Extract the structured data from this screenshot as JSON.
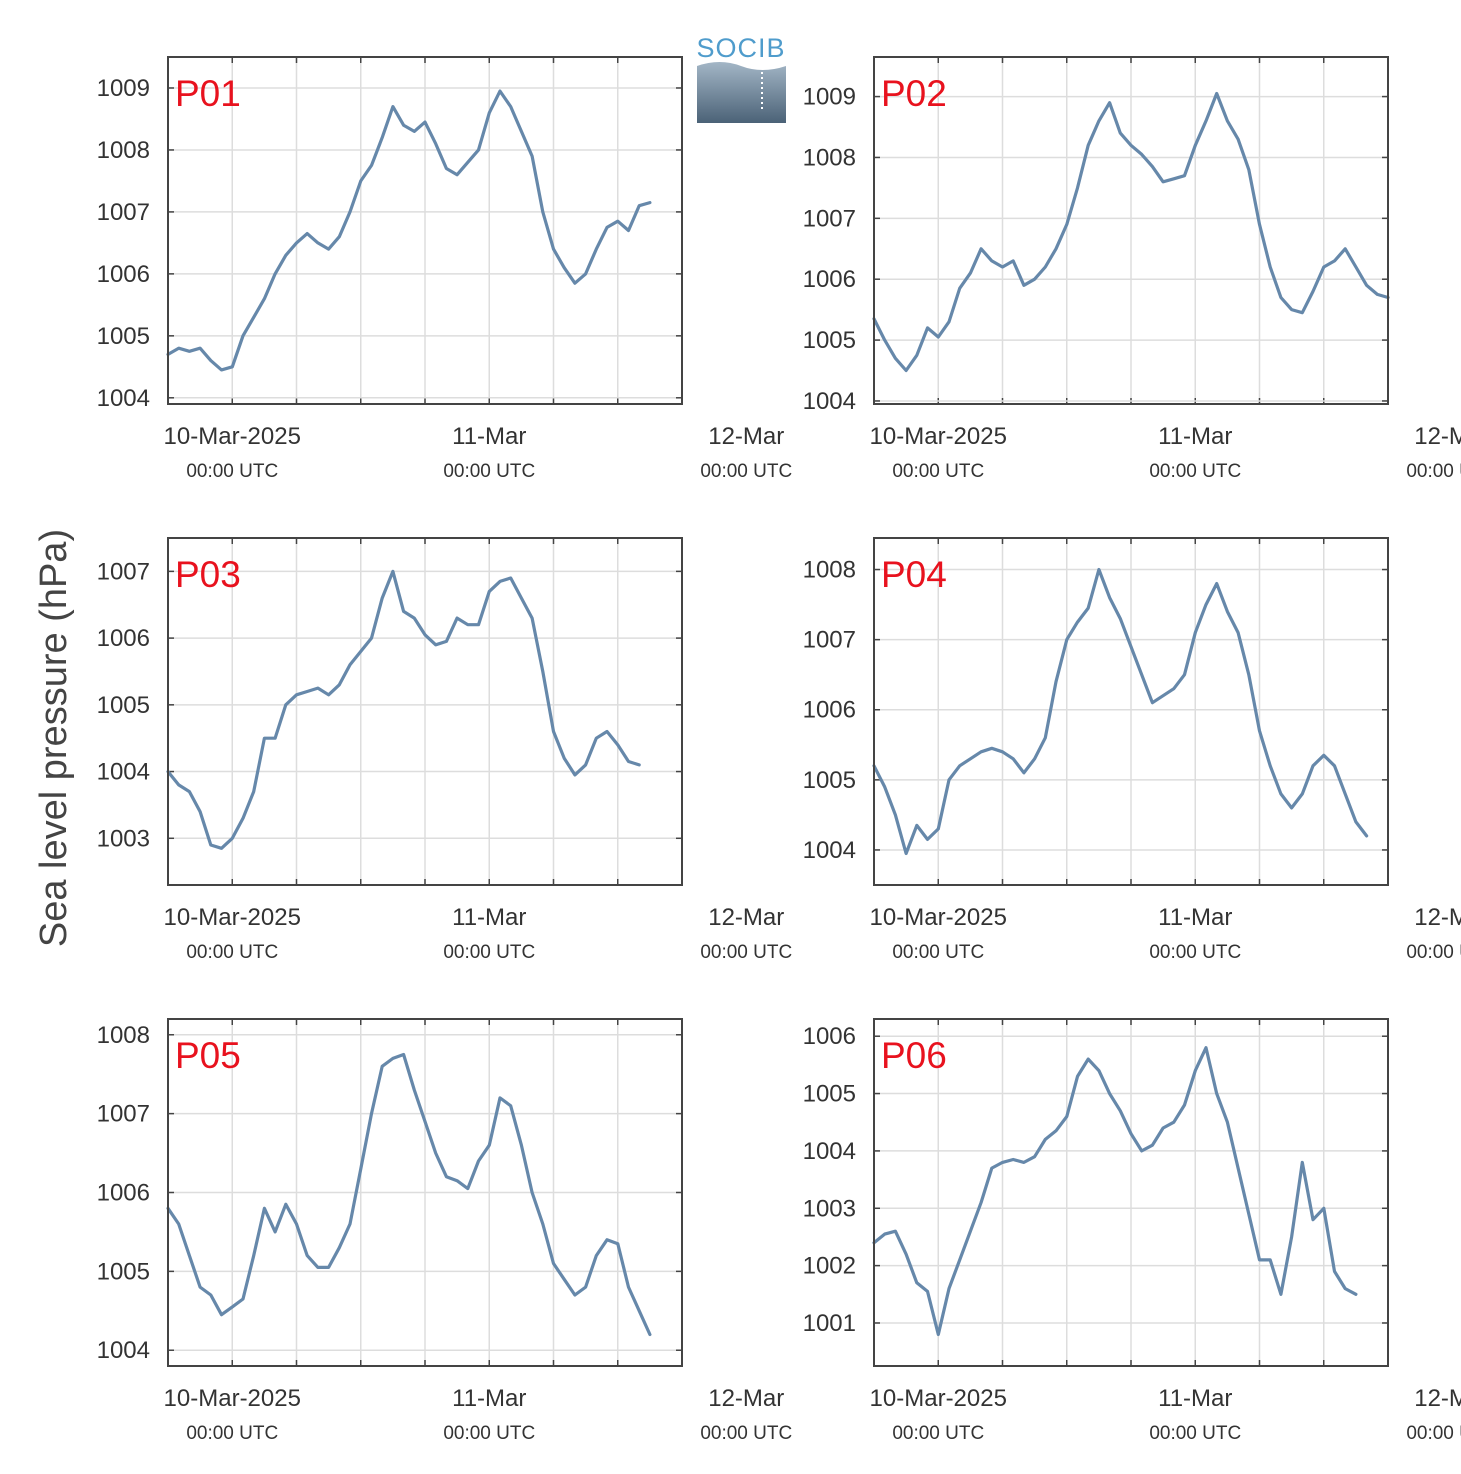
{
  "ylabel": "Sea level pressure (hPa)",
  "logo": {
    "text": "SOCIB",
    "colors": {
      "text": "#4f9ccc",
      "wave_top": "#9bb1c3",
      "wave_bottom": "#4d6479"
    }
  },
  "colors": {
    "series": "#6688aa",
    "title": "#e8121e",
    "grid": "#dddddd",
    "axis": "#444444"
  },
  "x_tick_labels": [
    {
      "date": "10-Mar-2025",
      "time": "00:00 UTC"
    },
    {
      "date": "11-Mar",
      "time": "00:00 UTC"
    },
    {
      "date": "12-Mar",
      "time": "00:00 UTC"
    }
  ],
  "chart_data": [
    {
      "type": "line",
      "title": "P01",
      "xlabel": "",
      "ylabel": "Sea level pressure (hPa)",
      "x_unit": "hours since 10-Mar-2025 00:00 UTC",
      "xlim": [
        -6,
        42
      ],
      "ylim": [
        1003.9,
        1009.5
      ],
      "yticks": [
        1004,
        1005,
        1006,
        1007,
        1008,
        1009
      ],
      "grid": true,
      "series": [
        {
          "x": [
            -6,
            -5,
            -4,
            -3,
            -2,
            -1,
            0,
            1,
            2,
            3,
            4,
            5,
            6,
            7,
            8,
            9,
            10,
            11,
            12,
            13,
            14,
            15,
            16,
            17,
            18,
            19,
            20,
            21,
            22,
            23,
            24,
            25,
            26,
            27,
            28,
            29,
            30,
            31,
            32,
            33,
            34,
            35,
            36,
            37,
            38,
            39,
            40,
            41,
            42
          ],
          "values": [
            1004.7,
            1004.8,
            1004.75,
            1004.8,
            1004.6,
            1004.45,
            1004.5,
            1005.0,
            1005.3,
            1005.6,
            1006.0,
            1006.3,
            1006.5,
            1006.65,
            1006.5,
            1006.4,
            1006.6,
            1007.0,
            1007.5,
            1007.75,
            1008.2,
            1008.7,
            1008.4,
            1008.3,
            1008.45,
            1008.1,
            1007.7,
            1007.6,
            1007.8,
            1008.0,
            1008.6,
            1008.95,
            1008.7,
            1008.3,
            1007.9,
            1007.0,
            1006.4,
            1006.1,
            1005.85,
            1006.0,
            1006.4,
            1006.75,
            1006.85,
            1006.7,
            1007.1,
            1007.15,
            null,
            null,
            null
          ]
        }
      ]
    },
    {
      "type": "line",
      "title": "P02",
      "xlabel": "",
      "ylabel": "Sea level pressure (hPa)",
      "x_unit": "hours since 10-Mar-2025 00:00 UTC",
      "xlim": [
        -6,
        42
      ],
      "ylim": [
        1003.95,
        1009.65
      ],
      "yticks": [
        1004,
        1005,
        1006,
        1007,
        1008,
        1009
      ],
      "grid": true,
      "series": [
        {
          "x": [
            -6,
            -5,
            -4,
            -3,
            -2,
            -1,
            0,
            1,
            2,
            3,
            4,
            5,
            6,
            7,
            8,
            9,
            10,
            11,
            12,
            13,
            14,
            15,
            16,
            17,
            18,
            19,
            20,
            21,
            22,
            23,
            24,
            25,
            26,
            27,
            28,
            29,
            30,
            31,
            32,
            33,
            34,
            35,
            36,
            37,
            38,
            39,
            40,
            41,
            42
          ],
          "values": [
            1005.35,
            1005.0,
            1004.7,
            1004.5,
            1004.75,
            1005.2,
            1005.05,
            1005.3,
            1005.85,
            1006.1,
            1006.5,
            1006.3,
            1006.2,
            1006.3,
            1005.9,
            1006.0,
            1006.2,
            1006.5,
            1006.9,
            1007.5,
            1008.2,
            1008.6,
            1008.9,
            1008.4,
            1008.2,
            1008.05,
            1007.85,
            1007.6,
            1007.65,
            1007.7,
            1008.2,
            1008.6,
            1009.05,
            1008.6,
            1008.3,
            1007.8,
            1006.9,
            1006.2,
            1005.7,
            1005.5,
            1005.45,
            1005.8,
            1006.2,
            1006.3,
            1006.5,
            1006.2,
            1005.9,
            1005.75,
            1005.7
          ]
        }
      ]
    },
    {
      "type": "line",
      "title": "P03",
      "xlabel": "",
      "ylabel": "Sea level pressure (hPa)",
      "x_unit": "hours since 10-Mar-2025 00:00 UTC",
      "xlim": [
        -6,
        42
      ],
      "ylim": [
        1002.3,
        1007.5
      ],
      "yticks": [
        1003,
        1004,
        1005,
        1006,
        1007
      ],
      "grid": true,
      "series": [
        {
          "x": [
            -6,
            -5,
            -4,
            -3,
            -2,
            -1,
            0,
            1,
            2,
            3,
            4,
            5,
            6,
            7,
            8,
            9,
            10,
            11,
            12,
            13,
            14,
            15,
            16,
            17,
            18,
            19,
            20,
            21,
            22,
            23,
            24,
            25,
            26,
            27,
            28,
            29,
            30,
            31,
            32,
            33,
            34,
            35,
            36,
            37,
            38,
            39,
            40,
            41,
            42
          ],
          "values": [
            1004.0,
            1003.8,
            1003.7,
            1003.4,
            1002.9,
            1002.85,
            1003.0,
            1003.3,
            1003.7,
            1004.5,
            1004.5,
            1005.0,
            1005.15,
            1005.2,
            1005.25,
            1005.15,
            1005.3,
            1005.6,
            1005.8,
            1006.0,
            1006.6,
            1007.0,
            1006.4,
            1006.3,
            1006.05,
            1005.9,
            1005.95,
            1006.3,
            1006.2,
            1006.2,
            1006.7,
            1006.85,
            1006.9,
            1006.6,
            1006.3,
            1005.5,
            1004.6,
            1004.2,
            1003.95,
            1004.1,
            1004.5,
            1004.6,
            1004.4,
            1004.15,
            1004.1,
            null,
            null,
            null,
            null
          ]
        }
      ]
    },
    {
      "type": "line",
      "title": "P04",
      "xlabel": "",
      "ylabel": "Sea level pressure (hPa)",
      "x_unit": "hours since 10-Mar-2025 00:00 UTC",
      "xlim": [
        -6,
        42
      ],
      "ylim": [
        1003.5,
        1008.45
      ],
      "yticks": [
        1004,
        1005,
        1006,
        1007,
        1008
      ],
      "grid": true,
      "series": [
        {
          "x": [
            -6,
            -5,
            -4,
            -3,
            -2,
            -1,
            0,
            1,
            2,
            3,
            4,
            5,
            6,
            7,
            8,
            9,
            10,
            11,
            12,
            13,
            14,
            15,
            16,
            17,
            18,
            19,
            20,
            21,
            22,
            23,
            24,
            25,
            26,
            27,
            28,
            29,
            30,
            31,
            32,
            33,
            34,
            35,
            36,
            37,
            38,
            39,
            40,
            41,
            42
          ],
          "values": [
            1005.2,
            1004.9,
            1004.5,
            1003.95,
            1004.35,
            1004.15,
            1004.3,
            1005.0,
            1005.2,
            1005.3,
            1005.4,
            1005.45,
            1005.4,
            1005.3,
            1005.1,
            1005.3,
            1005.6,
            1006.4,
            1007.0,
            1007.25,
            1007.45,
            1008.0,
            1007.6,
            1007.3,
            1006.9,
            1006.5,
            1006.1,
            1006.2,
            1006.3,
            1006.5,
            1007.1,
            1007.5,
            1007.8,
            1007.4,
            1007.1,
            1006.5,
            1005.7,
            1005.2,
            1004.8,
            1004.6,
            1004.8,
            1005.2,
            1005.35,
            1005.2,
            1004.8,
            1004.4,
            1004.2,
            null,
            null
          ]
        }
      ]
    },
    {
      "type": "line",
      "title": "P05",
      "xlabel": "",
      "ylabel": "Sea level pressure (hPa)",
      "x_unit": "hours since 10-Mar-2025 00:00 UTC",
      "xlim": [
        -6,
        42
      ],
      "ylim": [
        1003.8,
        1008.2
      ],
      "yticks": [
        1004,
        1005,
        1006,
        1007,
        1008
      ],
      "grid": true,
      "series": [
        {
          "x": [
            -6,
            -5,
            -4,
            -3,
            -2,
            -1,
            0,
            1,
            2,
            3,
            4,
            5,
            6,
            7,
            8,
            9,
            10,
            11,
            12,
            13,
            14,
            15,
            16,
            17,
            18,
            19,
            20,
            21,
            22,
            23,
            24,
            25,
            26,
            27,
            28,
            29,
            30,
            31,
            32,
            33,
            34,
            35,
            36,
            37,
            38,
            39,
            40,
            41,
            42
          ],
          "values": [
            1005.8,
            1005.6,
            1005.2,
            1004.8,
            1004.7,
            1004.45,
            1004.55,
            1004.65,
            1005.2,
            1005.8,
            1005.5,
            1005.85,
            1005.6,
            1005.2,
            1005.05,
            1005.05,
            1005.3,
            1005.6,
            1006.3,
            1007.0,
            1007.6,
            1007.7,
            1007.75,
            1007.3,
            1006.9,
            1006.5,
            1006.2,
            1006.15,
            1006.05,
            1006.4,
            1006.6,
            1007.2,
            1007.1,
            1006.6,
            1006.0,
            1005.6,
            1005.1,
            1004.9,
            1004.7,
            1004.8,
            1005.2,
            1005.4,
            1005.35,
            1004.8,
            1004.5,
            1004.2,
            null,
            null,
            null
          ]
        }
      ]
    },
    {
      "type": "line",
      "title": "P06",
      "xlabel": "",
      "ylabel": "Sea level pressure (hPa)",
      "x_unit": "hours since 10-Mar-2025 00:00 UTC",
      "xlim": [
        -6,
        42
      ],
      "ylim": [
        1000.25,
        1006.3
      ],
      "yticks": [
        1001,
        1002,
        1003,
        1004,
        1005,
        1006
      ],
      "grid": true,
      "series": [
        {
          "x": [
            -6,
            -5,
            -4,
            -3,
            -2,
            -1,
            0,
            1,
            2,
            3,
            4,
            5,
            6,
            7,
            8,
            9,
            10,
            11,
            12,
            13,
            14,
            15,
            16,
            17,
            18,
            19,
            20,
            21,
            22,
            23,
            24,
            25,
            26,
            27,
            28,
            29,
            30,
            31,
            32,
            33,
            34,
            35,
            36,
            37,
            38,
            39,
            40,
            41,
            42
          ],
          "values": [
            1002.4,
            1002.55,
            1002.6,
            1002.2,
            1001.7,
            1001.55,
            1000.8,
            1001.6,
            1002.1,
            1002.6,
            1003.1,
            1003.7,
            1003.8,
            1003.85,
            1003.8,
            1003.9,
            1004.2,
            1004.35,
            1004.6,
            1005.3,
            1005.6,
            1005.4,
            1005.0,
            1004.7,
            1004.3,
            1004.0,
            1004.1,
            1004.4,
            1004.5,
            1004.8,
            1005.4,
            1005.8,
            1005.0,
            1004.5,
            1003.7,
            1002.9,
            1002.1,
            1002.1,
            1001.5,
            1002.5,
            1003.8,
            1002.8,
            1003.0,
            1001.9,
            1001.6,
            1001.5,
            null,
            null,
            null
          ]
        }
      ]
    }
  ]
}
